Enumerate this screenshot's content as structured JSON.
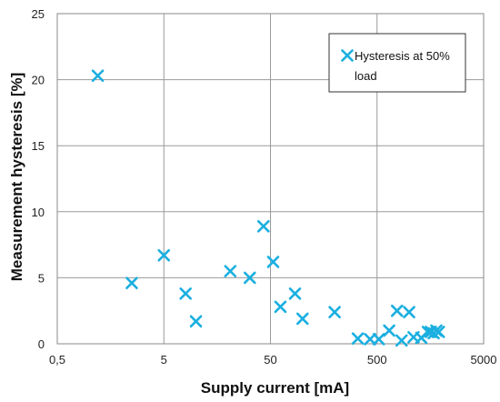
{
  "chart_data": {
    "type": "scatter",
    "xscale": "log",
    "xlim": [
      0.5,
      5000
    ],
    "ylim": [
      0,
      25
    ],
    "grid": true,
    "legend_position": "top-right",
    "xticks": [
      0.5,
      5,
      50,
      500,
      5000
    ],
    "xtick_labels": [
      "0,5",
      "5",
      "50",
      "500",
      "5000"
    ],
    "yticks": [
      0,
      5,
      10,
      15,
      20,
      25
    ],
    "ytick_labels": [
      "0",
      "5",
      "10",
      "15",
      "20",
      "25"
    ],
    "xlabel": "Supply current [mA]",
    "ylabel": "Measurement hysteresis [%]",
    "series": [
      {
        "name": "Hysteresis at 50% load",
        "name_lines": [
          "Hysteresis at 50%",
          "load"
        ],
        "color": "#1AAFE0",
        "marker": "x",
        "points": [
          [
            1.2,
            20.3
          ],
          [
            2.5,
            4.6
          ],
          [
            5.0,
            6.7
          ],
          [
            8.0,
            3.8
          ],
          [
            10.0,
            1.7
          ],
          [
            21.0,
            5.5
          ],
          [
            32.0,
            5.0
          ],
          [
            43.0,
            8.9
          ],
          [
            53.0,
            6.2
          ],
          [
            62.0,
            2.8
          ],
          [
            85.0,
            3.8
          ],
          [
            100.0,
            1.9
          ],
          [
            200.0,
            2.4
          ],
          [
            330.0,
            0.4
          ],
          [
            430.0,
            0.35
          ],
          [
            520.0,
            0.35
          ],
          [
            650.0,
            1.0
          ],
          [
            770.0,
            2.5
          ],
          [
            850.0,
            0.25
          ],
          [
            1000.0,
            2.4
          ],
          [
            1100.0,
            0.5
          ],
          [
            1300.0,
            0.45
          ],
          [
            1500.0,
            0.9
          ],
          [
            1600.0,
            0.9
          ],
          [
            1700.0,
            0.8
          ],
          [
            1800.0,
            1.0
          ],
          [
            1900.0,
            0.9
          ]
        ]
      }
    ]
  }
}
